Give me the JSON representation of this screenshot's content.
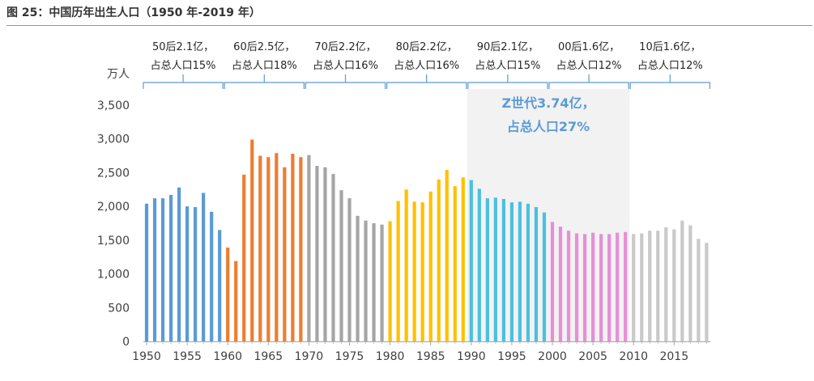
{
  "figure": {
    "title": "图 25：中国历年出生人口（1950 年-2019 年）",
    "colors": {
      "rule": "#E0813A",
      "brace": "#5B9BD5",
      "shade": "#F2F2F2",
      "z_label": "#5B9BD5"
    }
  },
  "chart_data": {
    "type": "bar",
    "title": "中国历年出生人口（1950 年-2019 年）",
    "ylabel": "万人",
    "xlabel": "",
    "ylim": [
      0,
      3500
    ],
    "yticks": [
      "0",
      "500",
      "1,000",
      "1,500",
      "2,000",
      "2,500",
      "3,000",
      "3,500"
    ],
    "xticks": [
      "1950",
      "1955",
      "1960",
      "1965",
      "1970",
      "1975",
      "1980",
      "1985",
      "1990",
      "1995",
      "2000",
      "2005",
      "2010",
      "2015"
    ],
    "years": [
      1950,
      1951,
      1952,
      1953,
      1954,
      1955,
      1956,
      1957,
      1958,
      1959,
      1960,
      1961,
      1962,
      1963,
      1964,
      1965,
      1966,
      1967,
      1968,
      1969,
      1970,
      1971,
      1972,
      1973,
      1974,
      1975,
      1976,
      1977,
      1978,
      1979,
      1980,
      1981,
      1982,
      1983,
      1984,
      1985,
      1986,
      1987,
      1988,
      1989,
      1990,
      1991,
      1992,
      1993,
      1994,
      1995,
      1996,
      1997,
      1998,
      1999,
      2000,
      2001,
      2002,
      2003,
      2004,
      2005,
      2006,
      2007,
      2008,
      2009,
      2010,
      2011,
      2012,
      2013,
      2014,
      2015,
      2016,
      2017,
      2018,
      2019
    ],
    "values": [
      2040,
      2120,
      2120,
      2170,
      2280,
      2000,
      1990,
      2200,
      1920,
      1650,
      1390,
      1190,
      2470,
      2990,
      2750,
      2730,
      2790,
      2580,
      2780,
      2730,
      2760,
      2600,
      2580,
      2480,
      2240,
      2120,
      1860,
      1790,
      1750,
      1730,
      1780,
      2080,
      2250,
      2070,
      2060,
      2220,
      2400,
      2540,
      2300,
      2430,
      2390,
      2260,
      2120,
      2130,
      2110,
      2060,
      2070,
      2040,
      1990,
      1910,
      1770,
      1700,
      1640,
      1600,
      1590,
      1610,
      1590,
      1590,
      1610,
      1620,
      1590,
      1600,
      1640,
      1640,
      1690,
      1660,
      1790,
      1720,
      1520,
      1460
    ],
    "series_colors": [
      {
        "from": 1950,
        "to": 1959,
        "color": "#5B9BD5"
      },
      {
        "from": 1960,
        "to": 1969,
        "color": "#ED7D31"
      },
      {
        "from": 1970,
        "to": 1979,
        "color": "#A5A5A5"
      },
      {
        "from": 1980,
        "to": 1989,
        "color": "#FFC000"
      },
      {
        "from": 1990,
        "to": 1999,
        "color": "#4BC0E0"
      },
      {
        "from": 2000,
        "to": 2009,
        "color": "#E68FD6"
      },
      {
        "from": 2010,
        "to": 2019,
        "color": "#C9C9C9"
      }
    ],
    "generations": [
      {
        "from": 1950,
        "to": 1959,
        "line1": "50后2.1亿，",
        "line2": "占总人口15%"
      },
      {
        "from": 1960,
        "to": 1969,
        "line1": "60后2.5亿，",
        "line2": "占总人口18%"
      },
      {
        "from": 1970,
        "to": 1979,
        "line1": "70后2.2亿，",
        "line2": "占总人口16%"
      },
      {
        "from": 1980,
        "to": 1989,
        "line1": "80后2.2亿，",
        "line2": "占总人口16%"
      },
      {
        "from": 1990,
        "to": 1999,
        "line1": "90后2.1亿，",
        "line2": "占总人口15%"
      },
      {
        "from": 2000,
        "to": 2009,
        "line1": "00后1.6亿，",
        "line2": "占总人口12%"
      },
      {
        "from": 2010,
        "to": 2019,
        "line1": "10后1.6亿，",
        "line2": "占总人口12%"
      }
    ],
    "annotation": {
      "from": 1990,
      "to": 2009,
      "line1": "Z世代3.74亿，",
      "line2": "占总人口27%"
    }
  }
}
